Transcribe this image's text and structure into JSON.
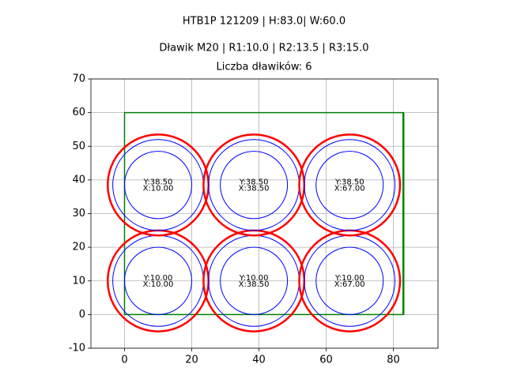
{
  "chart_data": {
    "type": "circles",
    "title": "HTB1P 121209 | H:83.0| W:60.0",
    "subtitle": "Dławik M20 | R1:10.0 | R2:13.5 | R3:15.0",
    "caption": "Liczba dławików: 6",
    "xlim": [
      -10,
      93.3
    ],
    "ylim": [
      -10,
      70
    ],
    "xticks": [
      0,
      20,
      40,
      60,
      80
    ],
    "yticks": [
      -10,
      0,
      10,
      20,
      30,
      40,
      50,
      60,
      70
    ],
    "grid": true,
    "rect": {
      "x": 0,
      "y": 0,
      "width": 83,
      "height": 60,
      "color": "green"
    },
    "rings": [
      {
        "r": 10,
        "color": "blue",
        "linewidth": 1
      },
      {
        "r": 13.5,
        "color": "blue",
        "linewidth": 1
      },
      {
        "r": 15,
        "color": "red",
        "linewidth": 2.5
      }
    ],
    "circles": [
      {
        "x": 10,
        "y": 10,
        "labels": [
          "Y:10.00",
          "X:10.00"
        ]
      },
      {
        "x": 38.5,
        "y": 10,
        "labels": [
          "Y:10.00",
          "X:38.50"
        ]
      },
      {
        "x": 67,
        "y": 10,
        "labels": [
          "Y:10.00",
          "X:67.00"
        ]
      },
      {
        "x": 10,
        "y": 38.5,
        "labels": [
          "Y:38.50",
          "X:10.00"
        ]
      },
      {
        "x": 38.5,
        "y": 38.5,
        "labels": [
          "Y:38.50",
          "X:38.50"
        ]
      },
      {
        "x": 67,
        "y": 38.5,
        "labels": [
          "Y:38.50",
          "X:67.00"
        ]
      }
    ]
  }
}
